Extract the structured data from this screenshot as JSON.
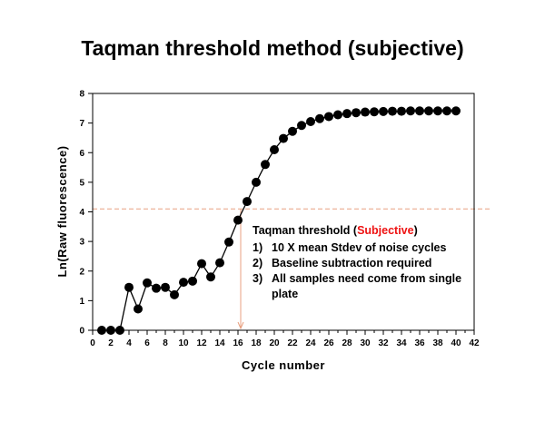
{
  "chart_data": {
    "type": "line",
    "title": "Taqman threshold method (subjective)",
    "xlabel": "Cycle number",
    "ylabel": "Ln(Raw fluorescence)",
    "xlim": [
      0,
      42
    ],
    "ylim": [
      0,
      8
    ],
    "xticks": [
      0,
      2,
      4,
      6,
      8,
      10,
      12,
      14,
      16,
      18,
      20,
      22,
      24,
      26,
      28,
      30,
      32,
      34,
      36,
      38,
      40,
      42
    ],
    "yticks": [
      0,
      1,
      2,
      3,
      4,
      5,
      6,
      7,
      8
    ],
    "series": [
      {
        "x": [
          1,
          2,
          3,
          4,
          5,
          6,
          7,
          8,
          9,
          10,
          11,
          12,
          13,
          14,
          15,
          16,
          17,
          18,
          19,
          20,
          21,
          22,
          23,
          24,
          25,
          26,
          27,
          28,
          29,
          30,
          31,
          32,
          33,
          34,
          35,
          36,
          37,
          38,
          39,
          40
        ],
        "y": [
          0.0,
          0.0,
          0.0,
          1.45,
          0.72,
          1.6,
          1.42,
          1.45,
          1.2,
          1.62,
          1.66,
          2.25,
          1.8,
          2.28,
          2.98,
          3.72,
          4.35,
          5.0,
          5.6,
          6.1,
          6.48,
          6.72,
          6.92,
          7.05,
          7.15,
          7.22,
          7.28,
          7.32,
          7.35,
          7.37,
          7.38,
          7.39,
          7.4,
          7.4,
          7.41,
          7.41,
          7.41,
          7.41,
          7.41,
          7.41
        ],
        "color": "#000000"
      }
    ],
    "threshold": {
      "y": 4.1,
      "cycle": 16.3,
      "color": "#e8a080"
    },
    "annotation": {
      "heading": "Taqman threshold  (",
      "heading_highlight": "Subjective",
      "heading_end": ")",
      "highlight_color": "#ee1111",
      "items": [
        {
          "num": "1)",
          "text": "10 X mean Stdev of noise cycles"
        },
        {
          "num": "2)",
          "text": "Baseline subtraction required"
        },
        {
          "num": "3)",
          "text": "All samples need come from single plate"
        }
      ]
    }
  }
}
